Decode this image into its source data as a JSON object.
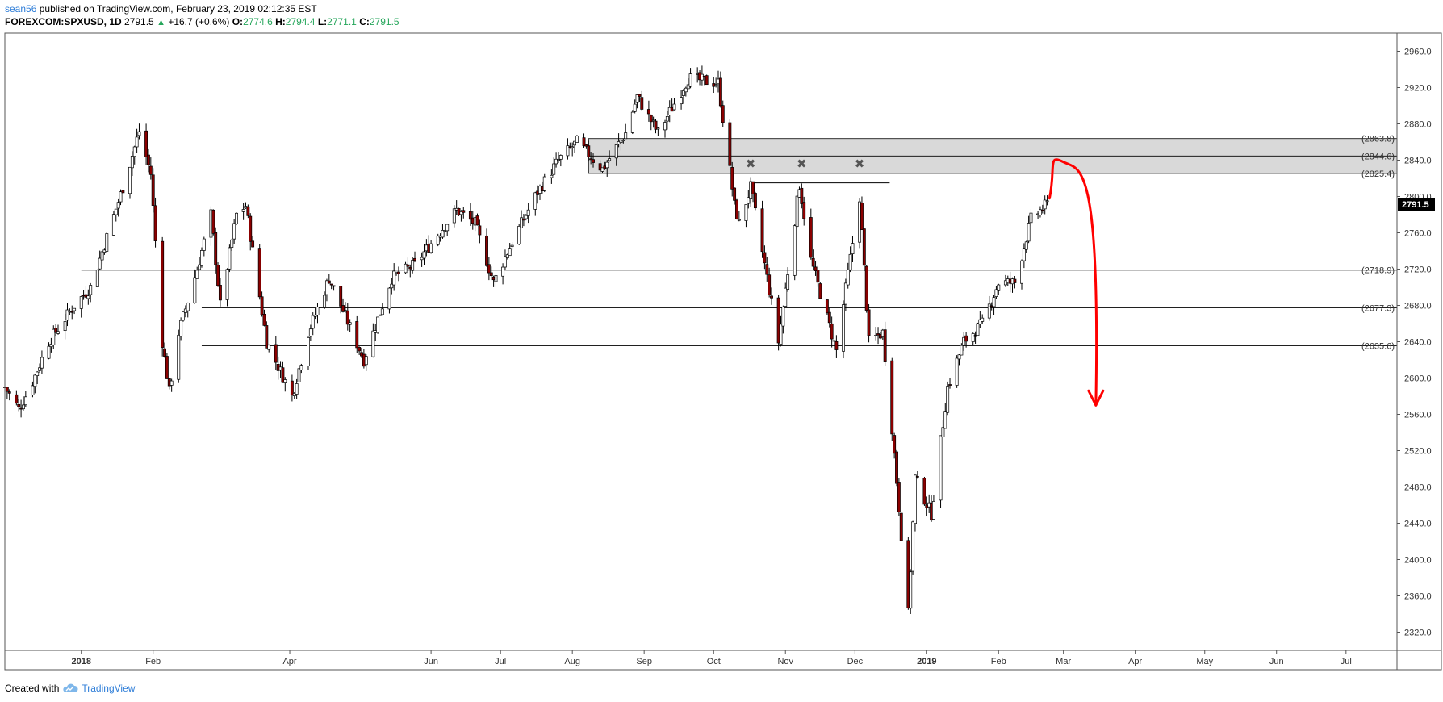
{
  "header": {
    "author": "sean56",
    "published_text": "published on TradingView.com, February 23, 2019 02:12:35 EST",
    "symbol": "FOREXCOM:SPXUSD, 1D",
    "last": "2791.5",
    "change": "+16.7 (+0.6%)",
    "open_label": "O:",
    "open": "2774.6",
    "high_label": "H:",
    "high": "2794.4",
    "low_label": "L:",
    "low": "2771.1",
    "close_label": "C:",
    "close": "2791.5"
  },
  "footer": {
    "created_with": "Created with",
    "brand": "TradingView",
    "logo_icon": "tradingview-cloud-icon"
  },
  "colors": {
    "up_candle_fill": "#ffffff",
    "down_candle_fill": "#8b0000",
    "candle_outline": "#000000",
    "zone_fill": "#d9d9d9",
    "projection_arrow": "#ff0000",
    "accent_green": "#26a65b",
    "brand_blue": "#2f7ed8"
  },
  "chart_data": {
    "type": "candlestick",
    "ylim": [
      2300,
      2980
    ],
    "y_ticks": [
      2320.0,
      2360.0,
      2400.0,
      2440.0,
      2480.0,
      2520.0,
      2560.0,
      2600.0,
      2640.0,
      2680.0,
      2720.0,
      2760.0,
      2800.0,
      2840.0,
      2880.0,
      2920.0,
      2960.0
    ],
    "x_ticks": [
      {
        "label": "2018",
        "date": "2018-01-01",
        "bold": true
      },
      {
        "label": "Feb",
        "date": "2018-02-01"
      },
      {
        "label": "Apr",
        "date": "2018-04-01"
      },
      {
        "label": "Jun",
        "date": "2018-06-01"
      },
      {
        "label": "Jul",
        "date": "2018-07-01"
      },
      {
        "label": "Aug",
        "date": "2018-08-01"
      },
      {
        "label": "Sep",
        "date": "2018-09-01"
      },
      {
        "label": "Oct",
        "date": "2018-10-01"
      },
      {
        "label": "Nov",
        "date": "2018-11-01"
      },
      {
        "label": "Dec",
        "date": "2018-12-01"
      },
      {
        "label": "2019",
        "date": "2019-01-01",
        "bold": true
      },
      {
        "label": "Feb",
        "date": "2019-02-01"
      },
      {
        "label": "Mar",
        "date": "2019-03-01"
      },
      {
        "label": "Apr",
        "date": "2019-04-01"
      },
      {
        "label": "May",
        "date": "2019-05-01"
      },
      {
        "label": "Jun",
        "date": "2019-06-01"
      },
      {
        "label": "Jul",
        "date": "2019-07-01"
      }
    ],
    "last_price": {
      "value": 2791.5,
      "label": "2791.5"
    },
    "resistance_zone": {
      "top": 2863.8,
      "mid": 2844.6,
      "bottom": 2825.4,
      "labels": [
        "(2863.8)",
        "(2844.6)",
        "(2825.4)"
      ],
      "start": "2018-08-08"
    },
    "support_lines": [
      {
        "value": 2718.9,
        "label": "(2718.9)",
        "start": "2018-01-01"
      },
      {
        "value": 2677.3,
        "label": "(2677.3)",
        "start": "2018-02-22"
      },
      {
        "value": 2635.6,
        "label": "(2635.6)",
        "start": "2018-02-22"
      }
    ],
    "neckline": {
      "value": 2815,
      "start": "2018-10-19",
      "end": "2018-12-16"
    },
    "peak_markers": [
      {
        "date": "2018-10-17",
        "value": 2836
      },
      {
        "date": "2018-11-08",
        "value": 2836
      },
      {
        "date": "2018-12-03",
        "value": 2836
      }
    ],
    "projection": {
      "points": [
        {
          "date": "2019-02-23",
          "value": 2798
        },
        {
          "date": "2019-03-01",
          "value": 2838
        },
        {
          "date": "2019-03-10",
          "value": 2790
        },
        {
          "date": "2019-03-15",
          "value": 2570
        }
      ]
    },
    "price_path": [
      {
        "date": "2017-11-29",
        "value": 2590
      },
      {
        "date": "2017-12-05",
        "value": 2566
      },
      {
        "date": "2017-12-10",
        "value": 2590
      },
      {
        "date": "2017-12-18",
        "value": 2640
      },
      {
        "date": "2017-12-29",
        "value": 2680
      },
      {
        "date": "2018-01-05",
        "value": 2700
      },
      {
        "date": "2018-01-12",
        "value": 2755
      },
      {
        "date": "2018-01-19",
        "value": 2810
      },
      {
        "date": "2018-01-26",
        "value": 2872
      },
      {
        "date": "2018-01-31",
        "value": 2825
      },
      {
        "date": "2018-02-05",
        "value": 2640
      },
      {
        "date": "2018-02-08",
        "value": 2585
      },
      {
        "date": "2018-02-12",
        "value": 2650
      },
      {
        "date": "2018-02-20",
        "value": 2720
      },
      {
        "date": "2018-02-26",
        "value": 2780
      },
      {
        "date": "2018-03-02",
        "value": 2680
      },
      {
        "date": "2018-03-09",
        "value": 2780
      },
      {
        "date": "2018-03-13",
        "value": 2790
      },
      {
        "date": "2018-03-22",
        "value": 2640
      },
      {
        "date": "2018-04-02",
        "value": 2580
      },
      {
        "date": "2018-04-09",
        "value": 2650
      },
      {
        "date": "2018-04-18",
        "value": 2710
      },
      {
        "date": "2018-05-03",
        "value": 2620
      },
      {
        "date": "2018-05-15",
        "value": 2710
      },
      {
        "date": "2018-05-25",
        "value": 2725
      },
      {
        "date": "2018-06-12",
        "value": 2785
      },
      {
        "date": "2018-06-20",
        "value": 2770
      },
      {
        "date": "2018-06-28",
        "value": 2705
      },
      {
        "date": "2018-07-06",
        "value": 2750
      },
      {
        "date": "2018-07-17",
        "value": 2805
      },
      {
        "date": "2018-07-26",
        "value": 2840
      },
      {
        "date": "2018-08-03",
        "value": 2860
      },
      {
        "date": "2018-08-14",
        "value": 2830
      },
      {
        "date": "2018-08-24",
        "value": 2870
      },
      {
        "date": "2018-08-29",
        "value": 2910
      },
      {
        "date": "2018-09-07",
        "value": 2870
      },
      {
        "date": "2018-09-20",
        "value": 2930
      },
      {
        "date": "2018-10-03",
        "value": 2925
      },
      {
        "date": "2018-10-10",
        "value": 2790
      },
      {
        "date": "2018-10-12",
        "value": 2770
      },
      {
        "date": "2018-10-17",
        "value": 2810
      },
      {
        "date": "2018-10-29",
        "value": 2640
      },
      {
        "date": "2018-11-07",
        "value": 2813
      },
      {
        "date": "2018-11-12",
        "value": 2730
      },
      {
        "date": "2018-11-23",
        "value": 2630
      },
      {
        "date": "2018-12-03",
        "value": 2800
      },
      {
        "date": "2018-12-07",
        "value": 2640
      },
      {
        "date": "2018-12-13",
        "value": 2650
      },
      {
        "date": "2018-12-17",
        "value": 2545
      },
      {
        "date": "2018-12-24",
        "value": 2340
      },
      {
        "date": "2018-12-27",
        "value": 2490
      },
      {
        "date": "2019-01-03",
        "value": 2450
      },
      {
        "date": "2019-01-10",
        "value": 2590
      },
      {
        "date": "2019-01-17",
        "value": 2640
      },
      {
        "date": "2019-01-25",
        "value": 2660
      },
      {
        "date": "2019-02-01",
        "value": 2705
      },
      {
        "date": "2019-02-08",
        "value": 2705
      },
      {
        "date": "2019-02-15",
        "value": 2775
      },
      {
        "date": "2019-02-22",
        "value": 2791.5
      }
    ]
  }
}
